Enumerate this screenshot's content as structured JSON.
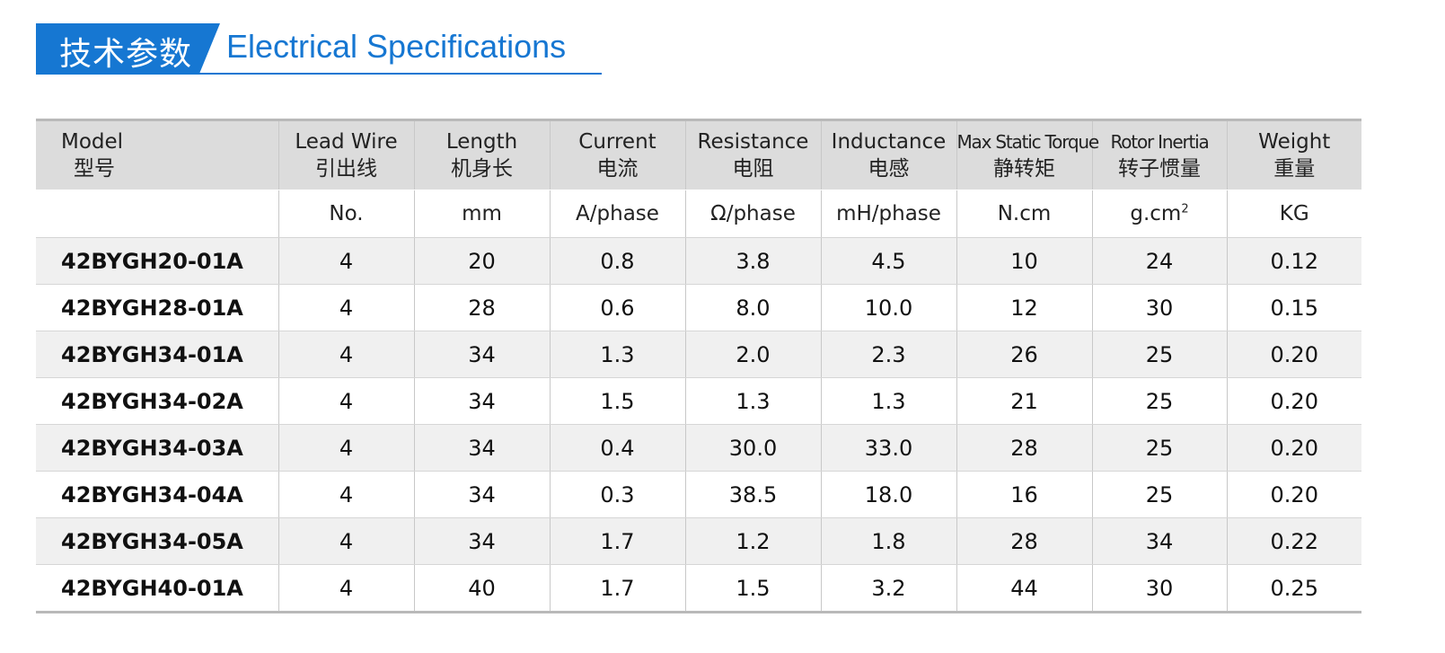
{
  "title": {
    "cn": "技术参数",
    "en": "Electrical Specifications"
  },
  "colors": {
    "accent": "#1677d2",
    "header_bg": "#dcdcdc",
    "stripe_bg": "#f0f0f0"
  },
  "table": {
    "headers": [
      {
        "en": "Model",
        "cn": "型号"
      },
      {
        "en": "Lead Wire",
        "cn": "引出线"
      },
      {
        "en": "Length",
        "cn": "机身长"
      },
      {
        "en": "Current",
        "cn": "电流"
      },
      {
        "en": "Resistance",
        "cn": "电阻"
      },
      {
        "en": "Inductance",
        "cn": "电感"
      },
      {
        "en": "Max Static Torque",
        "cn": "静转矩"
      },
      {
        "en": "Rotor  Inertia",
        "cn": "转子惯量"
      },
      {
        "en": "Weight",
        "cn": "重量"
      }
    ],
    "units": [
      "",
      "No.",
      "mm",
      "A/phase",
      "Ω/phase",
      "mH/phase",
      "N.cm",
      "g.cm",
      "KG"
    ],
    "units_superscript": "2",
    "rows": [
      [
        "42BYGH20-01A",
        "4",
        "20",
        "0.8",
        "3.8",
        "4.5",
        "10",
        "24",
        "0.12"
      ],
      [
        "42BYGH28-01A",
        "4",
        "28",
        "0.6",
        "8.0",
        "10.0",
        "12",
        "30",
        "0.15"
      ],
      [
        "42BYGH34-01A",
        "4",
        "34",
        "1.3",
        "2.0",
        "2.3",
        "26",
        "25",
        "0.20"
      ],
      [
        "42BYGH34-02A",
        "4",
        "34",
        "1.5",
        "1.3",
        "1.3",
        "21",
        "25",
        "0.20"
      ],
      [
        "42BYGH34-03A",
        "4",
        "34",
        "0.4",
        "30.0",
        "33.0",
        "28",
        "25",
        "0.20"
      ],
      [
        "42BYGH34-04A",
        "4",
        "34",
        "0.3",
        "38.5",
        "18.0",
        "16",
        "25",
        "0.20"
      ],
      [
        "42BYGH34-05A",
        "4",
        "34",
        "1.7",
        "1.2",
        "1.8",
        "28",
        "34",
        "0.22"
      ],
      [
        "42BYGH40-01A",
        "4",
        "40",
        "1.7",
        "1.5",
        "3.2",
        "44",
        "30",
        "0.25"
      ]
    ]
  }
}
